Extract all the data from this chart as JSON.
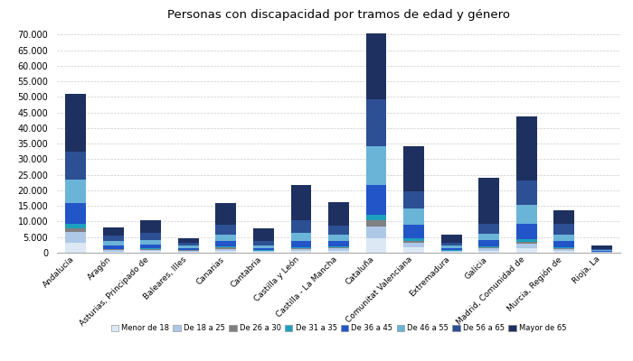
{
  "title": "Personas con discapacidad por tramos de edad y género",
  "categories": [
    "Andalucía",
    "Aragón",
    "Asturias, Principado de",
    "Baleares, Illes",
    "Canarias",
    "Cantabria",
    "Castilla y León",
    "Castilla - La Mancha",
    "Cataluña",
    "Comunitat Valenciana",
    "Extremadura",
    "Galicia",
    "Madrid, Comunidad de",
    "Murcia, Región de",
    "Rioja, La"
  ],
  "age_groups": [
    "Menor de 18",
    "De 18 a 25",
    "De 26 a 30",
    "De 31 a 35",
    "De 36 a 45",
    "De 46 a 55",
    "De 56 a 65",
    "Mayor de 65"
  ],
  "colors": [
    "#dce9f5",
    "#aec8e8",
    "#808080",
    "#1da0be",
    "#2255c8",
    "#6ab4d8",
    "#2d4f94",
    "#1e3060"
  ],
  "data": {
    "Andalucía": [
      3200,
      3500,
      1200,
      1500,
      6500,
      7500,
      9000,
      18500
    ],
    "Aragón": [
      400,
      500,
      150,
      200,
      1000,
      1500,
      1700,
      2800
    ],
    "Asturias, Principado de": [
      450,
      500,
      200,
      250,
      1200,
      1500,
      2200,
      4200
    ],
    "Baleares, Illes": [
      300,
      350,
      100,
      150,
      600,
      700,
      900,
      1500
    ],
    "Canarias": [
      600,
      700,
      300,
      350,
      1800,
      2000,
      3200,
      6900
    ],
    "Cantabria": [
      250,
      300,
      100,
      150,
      700,
      800,
      1500,
      3900
    ],
    "Castilla y León": [
      600,
      700,
      250,
      300,
      2000,
      2500,
      4000,
      11500
    ],
    "Castilla - La Mancha": [
      700,
      700,
      250,
      300,
      1800,
      2000,
      3000,
      7500
    ],
    "Cataluña": [
      4500,
      4000,
      1800,
      2000,
      9500,
      12500,
      15000,
      21000
    ],
    "Comunitat Valenciana": [
      1800,
      1500,
      600,
      700,
      4500,
      5000,
      5500,
      14500
    ],
    "Extremadura": [
      250,
      300,
      100,
      150,
      700,
      700,
      1000,
      2700
    ],
    "Galicia": [
      700,
      700,
      300,
      300,
      2000,
      2200,
      3200,
      14600
    ],
    "Madrid, Comunidad de": [
      1500,
      1500,
      600,
      700,
      5000,
      6000,
      8000,
      20500
    ],
    "Murcia, Región de": [
      600,
      700,
      250,
      300,
      1800,
      2000,
      3500,
      4500
    ],
    "Rioja, La": [
      80,
      100,
      40,
      50,
      250,
      300,
      450,
      1000
    ]
  },
  "ylim": [
    0,
    73000
  ],
  "yticks": [
    0,
    5000,
    10000,
    15000,
    20000,
    25000,
    30000,
    35000,
    40000,
    45000,
    50000,
    55000,
    60000,
    65000,
    70000
  ],
  "background_color": "#ffffff"
}
